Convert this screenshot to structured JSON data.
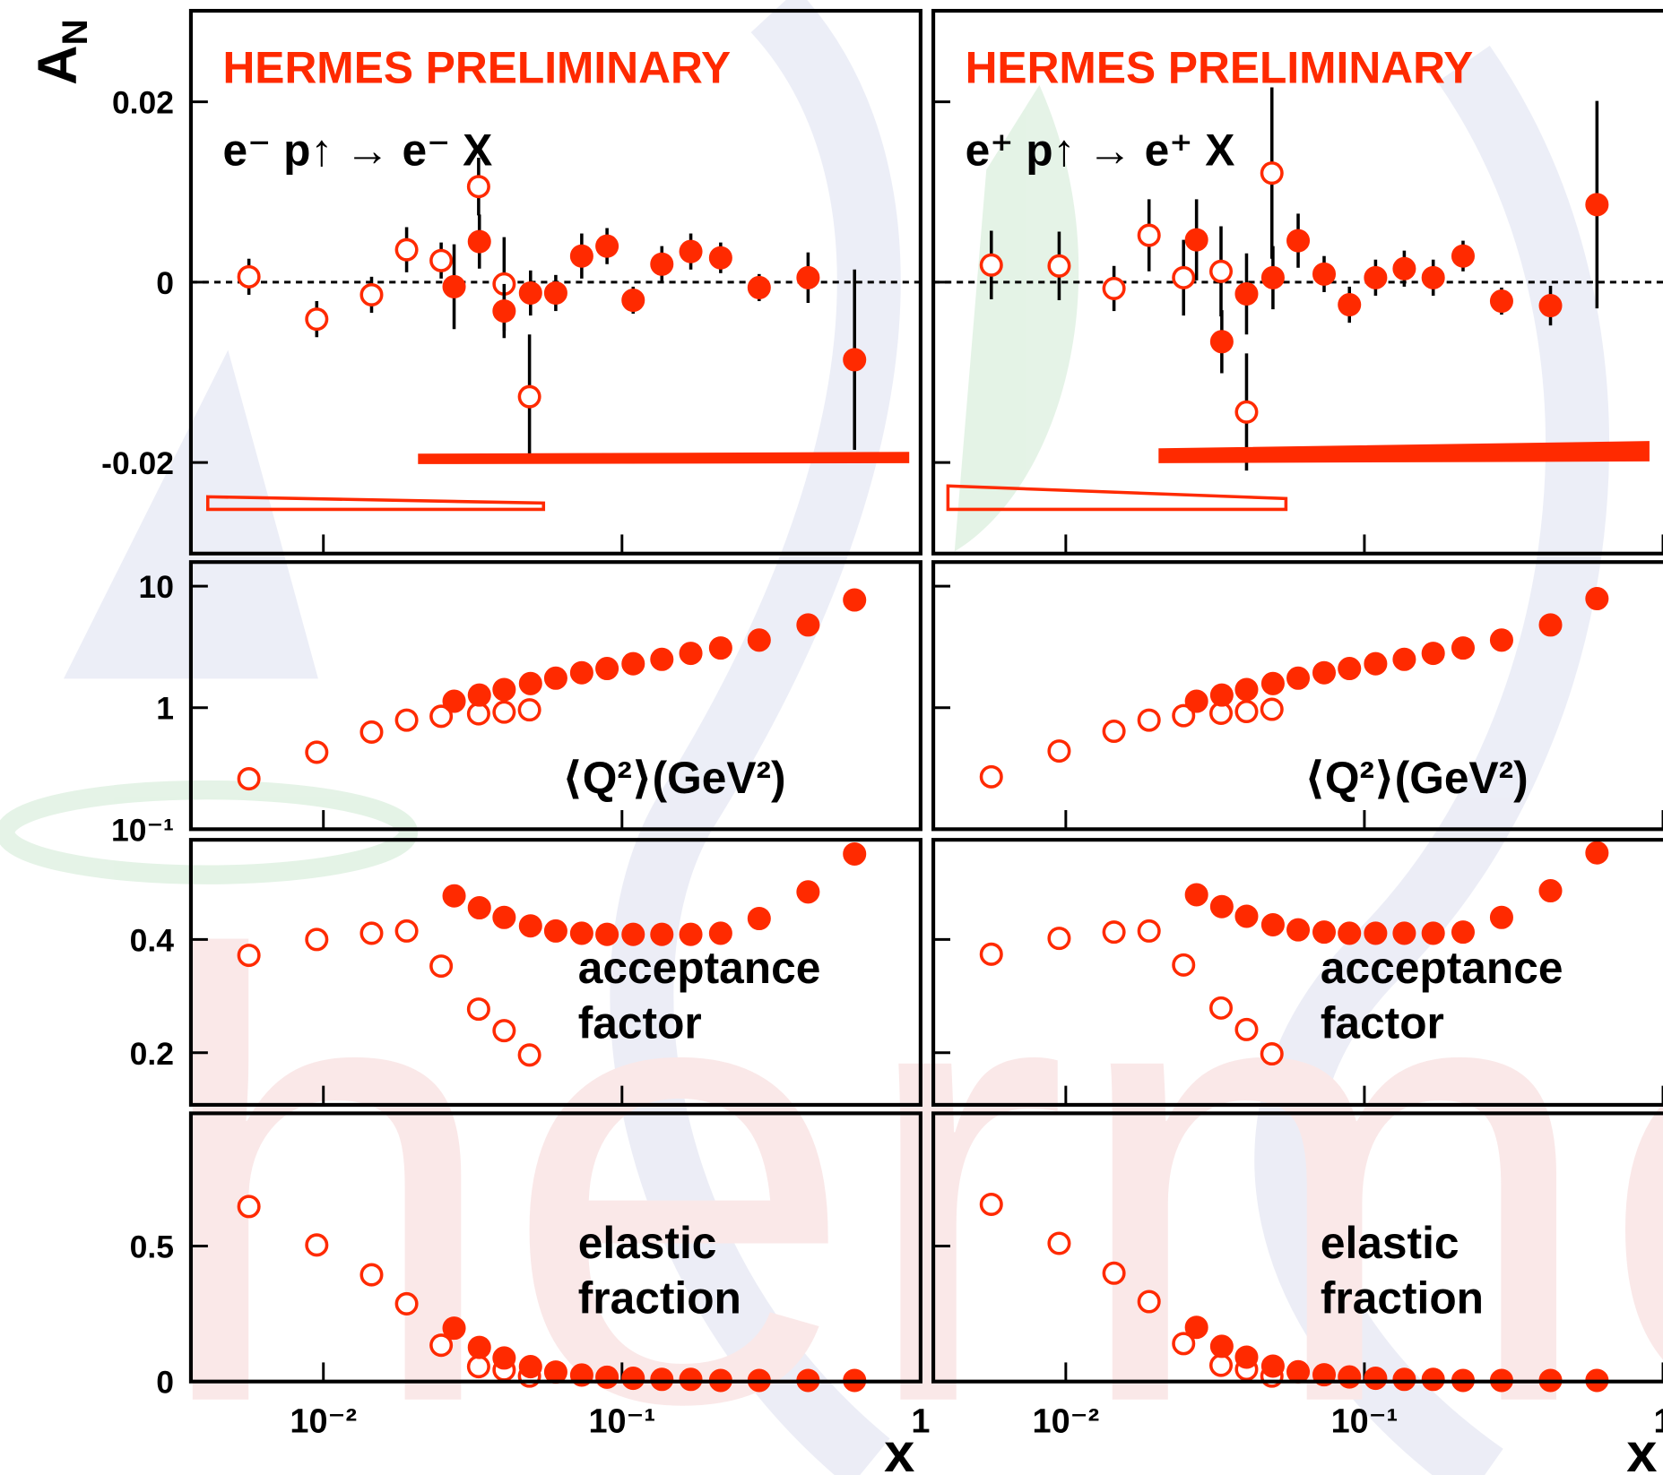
{
  "chart_data": [
    {
      "type": "scatter",
      "log_x": true,
      "xlim": [
        0.0036,
        1
      ],
      "xticks": [
        {
          "value": 0.01,
          "label": "10⁻²"
        },
        {
          "value": 0.1,
          "label": "10⁻¹"
        },
        1
      ],
      "xtick_labels": false,
      "ylim": [
        -0.0301,
        0.0301
      ],
      "yticks": [
        -0.02,
        0,
        0.02
      ],
      "ytick_labels": true,
      "zero_line": true,
      "ylabel": {
        "base": "A",
        "sub": "N"
      },
      "title": "HERMES PRELIMINARY",
      "reaction": "e⁻ p↑ → e⁻ X",
      "series": [
        {
          "color": "#ff2a00",
          "marker": "open",
          "x": [
            0.00563,
            0.0095,
            0.0145,
            0.019,
            0.0248,
            0.0331,
            0.0403,
            0.049
          ],
          "values": [
            0.0006,
            -0.0041,
            -0.0014,
            0.0036,
            0.0024,
            0.0106,
            -0.0002,
            -0.0127
          ],
          "errors": [
            0.002,
            0.002,
            0.002,
            0.0025,
            0.002,
            0.0032,
            0.0052,
            0.0069
          ],
          "band": {
            "x": [
              0.0041,
              0.0546
            ],
            "lower": [
              -0.0252,
              -0.0252
            ],
            "upper": [
              -0.0238,
              -0.0245
            ]
          }
        },
        {
          "color": "#ff2a00",
          "marker": "filled",
          "x": [
            0.0274,
            0.0333,
            0.0403,
            0.0494,
            0.06,
            0.0733,
            0.0891,
            0.109,
            0.136,
            0.17,
            0.214,
            0.288,
            0.42,
            0.601
          ],
          "values": [
            -0.0005,
            0.0045,
            -0.0032,
            -0.0012,
            -0.0012,
            0.0029,
            0.004,
            -0.002,
            0.002,
            0.0034,
            0.0027,
            -0.0006,
            0.0005,
            -0.0086
          ],
          "errors": [
            0.0047,
            0.003,
            0.003,
            0.0025,
            0.002,
            0.0025,
            0.002,
            0.0015,
            0.002,
            0.002,
            0.0017,
            0.0015,
            0.0028,
            0.01
          ],
          "band": {
            "x": [
              0.021,
              0.905
            ],
            "lower": [
              -0.02,
              -0.0199
            ],
            "upper": [
              -0.0192,
              -0.019
            ]
          }
        }
      ]
    },
    {
      "type": "scatter",
      "log_x": true,
      "xlim": [
        0.0036,
        1
      ],
      "xticks": [
        {
          "value": 0.01,
          "label": "10⁻²"
        },
        {
          "value": 0.1,
          "label": "10⁻¹"
        },
        1
      ],
      "xtick_labels": false,
      "ylim": [
        -0.0301,
        0.0301
      ],
      "yticks": [
        -0.02,
        0,
        0.02
      ],
      "ytick_labels": false,
      "zero_line": true,
      "title": "HERMES PRELIMINARY",
      "reaction": "e⁺ p↑ → e⁺ X",
      "series": [
        {
          "color": "#ff2a00",
          "marker": "open",
          "x": [
            0.00563,
            0.0095,
            0.0145,
            0.019,
            0.0248,
            0.0331,
            0.0403,
            0.049
          ],
          "values": [
            0.0019,
            0.0018,
            -0.0007,
            0.0052,
            0.0005,
            0.0012,
            -0.0144,
            0.0121
          ],
          "errors": [
            0.0038,
            0.0038,
            0.0025,
            0.004,
            0.0042,
            0.005,
            0.0065,
            0.0095
          ],
          "band": {
            "x": [
              0.00403,
              0.0546
            ],
            "lower": [
              -0.0252,
              -0.0252
            ],
            "upper": [
              -0.0226,
              -0.024
            ]
          }
        },
        {
          "color": "#ff2a00",
          "marker": "filled",
          "x": [
            0.0274,
            0.0333,
            0.0403,
            0.0494,
            0.06,
            0.0733,
            0.0891,
            0.109,
            0.136,
            0.17,
            0.214,
            0.288,
            0.42,
            0.601
          ],
          "values": [
            0.0047,
            -0.0066,
            -0.0013,
            0.0005,
            0.0046,
            0.0009,
            -0.0025,
            0.0005,
            0.0015,
            0.0005,
            0.0029,
            -0.0021,
            -0.0026,
            0.0086
          ],
          "errors": [
            0.0045,
            0.0035,
            0.0045,
            0.0035,
            0.003,
            0.002,
            0.002,
            0.002,
            0.002,
            0.002,
            0.0017,
            0.0015,
            0.0022,
            0.0115
          ],
          "band": {
            "x": [
              0.0207,
              0.89
            ],
            "lower": [
              -0.0199,
              -0.0197
            ],
            "upper": [
              -0.0186,
              -0.0178
            ]
          }
        }
      ]
    },
    {
      "type": "scatter",
      "log_x": true,
      "log_y": true,
      "xlim": [
        0.0036,
        1
      ],
      "xticks": [
        {
          "value": 0.01,
          "label": "10⁻²"
        },
        {
          "value": 0.1,
          "label": "10⁻¹"
        },
        1
      ],
      "xtick_labels": false,
      "ylim": [
        0.1,
        15.8
      ],
      "yticks": [
        {
          "value": 0.1,
          "label": "10⁻¹"
        },
        1,
        10
      ],
      "ytick_labels": true,
      "label": [
        "⟨Q²⟩(GeV²)"
      ],
      "series": [
        {
          "color": "#ff2a00",
          "marker": "open",
          "x": [
            0.00563,
            0.0095,
            0.0145,
            0.019,
            0.0248,
            0.0331,
            0.0403,
            0.049
          ],
          "values": [
            0.26,
            0.43,
            0.63,
            0.79,
            0.85,
            0.89,
            0.92,
            0.96
          ]
        },
        {
          "color": "#ff2a00",
          "marker": "filled",
          "x": [
            0.0274,
            0.0333,
            0.0403,
            0.0494,
            0.06,
            0.0733,
            0.0891,
            0.109,
            0.136,
            0.17,
            0.214,
            0.288,
            0.42,
            0.601
          ],
          "values": [
            1.13,
            1.27,
            1.41,
            1.58,
            1.75,
            1.94,
            2.1,
            2.3,
            2.5,
            2.8,
            3.1,
            3.6,
            4.8,
            7.7
          ]
        }
      ]
    },
    {
      "type": "scatter",
      "log_x": true,
      "log_y": true,
      "xlim": [
        0.0036,
        1
      ],
      "xticks": [
        {
          "value": 0.01,
          "label": "10⁻²"
        },
        {
          "value": 0.1,
          "label": "10⁻¹"
        },
        1
      ],
      "xtick_labels": false,
      "ylim": [
        0.1,
        15.8
      ],
      "yticks": [
        {
          "value": 0.1,
          "label": "10⁻¹"
        },
        1,
        10
      ],
      "ytick_labels": false,
      "label": [
        "⟨Q²⟩(GeV²)"
      ],
      "series": [
        {
          "color": "#ff2a00",
          "marker": "open",
          "x": [
            0.00563,
            0.0095,
            0.0145,
            0.019,
            0.0248,
            0.0331,
            0.0403,
            0.049
          ],
          "values": [
            0.27,
            0.44,
            0.64,
            0.79,
            0.86,
            0.9,
            0.93,
            0.97
          ]
        },
        {
          "color": "#ff2a00",
          "marker": "filled",
          "x": [
            0.0274,
            0.0333,
            0.0403,
            0.0494,
            0.06,
            0.0733,
            0.0891,
            0.109,
            0.136,
            0.17,
            0.214,
            0.288,
            0.42,
            0.601
          ],
          "values": [
            1.13,
            1.27,
            1.41,
            1.58,
            1.75,
            1.94,
            2.1,
            2.3,
            2.5,
            2.8,
            3.1,
            3.6,
            4.8,
            7.9
          ]
        }
      ]
    },
    {
      "type": "scatter",
      "log_x": true,
      "xlim": [
        0.0036,
        1
      ],
      "xticks": [
        {
          "value": 0.01,
          "label": "10⁻²"
        },
        {
          "value": 0.1,
          "label": "10⁻¹"
        },
        1
      ],
      "xtick_labels": false,
      "ylim": [
        0.108,
        0.576
      ],
      "yticks": [
        0.2,
        0.4
      ],
      "ytick_labels": true,
      "label": [
        "acceptance",
        "factor"
      ],
      "series": [
        {
          "color": "#ff2a00",
          "marker": "open",
          "x": [
            0.00563,
            0.0095,
            0.0145,
            0.019,
            0.0248,
            0.0331,
            0.0403,
            0.049
          ],
          "values": [
            0.372,
            0.4,
            0.411,
            0.415,
            0.353,
            0.277,
            0.239,
            0.196
          ]
        },
        {
          "color": "#ff2a00",
          "marker": "filled",
          "x": [
            0.0274,
            0.0333,
            0.0403,
            0.0494,
            0.06,
            0.0733,
            0.0891,
            0.109,
            0.136,
            0.17,
            0.214,
            0.288,
            0.42,
            0.601
          ],
          "values": [
            0.477,
            0.456,
            0.439,
            0.424,
            0.415,
            0.411,
            0.409,
            0.409,
            0.409,
            0.409,
            0.411,
            0.437,
            0.484,
            0.551
          ]
        }
      ]
    },
    {
      "type": "scatter",
      "log_x": true,
      "xlim": [
        0.0036,
        1
      ],
      "xticks": [
        {
          "value": 0.01,
          "label": "10⁻²"
        },
        {
          "value": 0.1,
          "label": "10⁻¹"
        },
        1
      ],
      "xtick_labels": false,
      "ylim": [
        0.108,
        0.576
      ],
      "yticks": [
        0.2,
        0.4
      ],
      "ytick_labels": false,
      "label": [
        "acceptance",
        "factor"
      ],
      "series": [
        {
          "color": "#ff2a00",
          "marker": "open",
          "x": [
            0.00563,
            0.0095,
            0.0145,
            0.019,
            0.0248,
            0.0331,
            0.0403,
            0.049
          ],
          "values": [
            0.374,
            0.402,
            0.413,
            0.415,
            0.355,
            0.279,
            0.241,
            0.198
          ]
        },
        {
          "color": "#ff2a00",
          "marker": "filled",
          "x": [
            0.0274,
            0.0333,
            0.0403,
            0.0494,
            0.06,
            0.0733,
            0.0891,
            0.109,
            0.136,
            0.17,
            0.214,
            0.288,
            0.42,
            0.601
          ],
          "values": [
            0.479,
            0.458,
            0.441,
            0.426,
            0.417,
            0.413,
            0.411,
            0.411,
            0.411,
            0.411,
            0.413,
            0.439,
            0.486,
            0.553
          ]
        }
      ]
    },
    {
      "type": "scatter",
      "log_x": true,
      "xlim": [
        0.0036,
        1
      ],
      "xticks": [
        {
          "value": 0.01,
          "label": "10⁻²"
        },
        {
          "value": 0.1,
          "label": "10⁻¹"
        },
        1
      ],
      "xtick_labels": true,
      "ylim": [
        0,
        0.99
      ],
      "yticks": [
        0,
        0.5
      ],
      "ytick_labels": true,
      "xlabel": "x",
      "label": [
        "elastic",
        "fraction"
      ],
      "series": [
        {
          "color": "#ff2a00",
          "marker": "open",
          "x": [
            0.00563,
            0.0095,
            0.0145,
            0.019,
            0.0248,
            0.0331,
            0.0403,
            0.049
          ],
          "values": [
            0.646,
            0.504,
            0.394,
            0.287,
            0.134,
            0.055,
            0.043,
            0.02
          ]
        },
        {
          "color": "#ff2a00",
          "marker": "filled",
          "x": [
            0.0274,
            0.0333,
            0.0403,
            0.0494,
            0.06,
            0.0733,
            0.0891,
            0.109,
            0.136,
            0.17,
            0.214,
            0.288,
            0.42,
            0.601
          ],
          "values": [
            0.197,
            0.126,
            0.087,
            0.055,
            0.035,
            0.024,
            0.016,
            0.012,
            0.008,
            0.008,
            0.004,
            0.004,
            0.004,
            0.004
          ]
        }
      ]
    },
    {
      "type": "scatter",
      "log_x": true,
      "xlim": [
        0.0036,
        1
      ],
      "xticks": [
        {
          "value": 0.01,
          "label": "10⁻²"
        },
        {
          "value": 0.1,
          "label": "10⁻¹"
        },
        1
      ],
      "xtick_labels": true,
      "ylim": [
        0,
        0.99
      ],
      "yticks": [
        0,
        0.5
      ],
      "ytick_labels": false,
      "xlabel": "x",
      "label": [
        "elastic",
        "fraction"
      ],
      "series": [
        {
          "color": "#ff2a00",
          "marker": "open",
          "x": [
            0.00563,
            0.0095,
            0.0145,
            0.019,
            0.0248,
            0.0331,
            0.0403,
            0.049
          ],
          "values": [
            0.654,
            0.51,
            0.4,
            0.295,
            0.14,
            0.06,
            0.045,
            0.02
          ]
        },
        {
          "color": "#ff2a00",
          "marker": "filled",
          "x": [
            0.0274,
            0.0333,
            0.0403,
            0.0494,
            0.06,
            0.0733,
            0.0891,
            0.109,
            0.136,
            0.17,
            0.214,
            0.288,
            0.42,
            0.601
          ],
          "values": [
            0.2,
            0.13,
            0.09,
            0.057,
            0.036,
            0.025,
            0.017,
            0.012,
            0.008,
            0.008,
            0.004,
            0.004,
            0.004,
            0.004
          ]
        }
      ]
    }
  ]
}
